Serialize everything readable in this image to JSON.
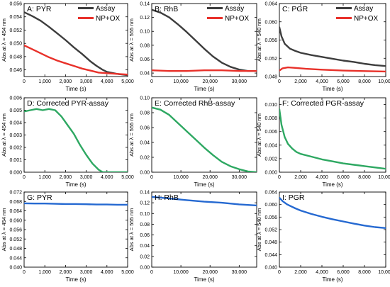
{
  "chart_data": [
    {
      "panel": "A",
      "type": "line",
      "title": "A: PYR",
      "xlabel": "Time (s)",
      "ylabel": "Abs at λ = 454 nm",
      "xlim": [
        0,
        5000
      ],
      "ylim": [
        0.045,
        0.056
      ],
      "xticks": [
        0,
        1000,
        2000,
        3000,
        4000,
        5000
      ],
      "xtick_labels": [
        "0",
        "1,000",
        "2,000",
        "3,000",
        "4,000",
        "5,000"
      ],
      "yticks": [
        0.046,
        0.048,
        0.05,
        0.052,
        0.054,
        0.056
      ],
      "ytick_labels": [
        "0.046",
        "0.048",
        "0.050",
        "0.052",
        "0.054",
        "0.056"
      ],
      "legend": "top-right",
      "series": [
        {
          "name": "Assay",
          "color": "#3d3d3d",
          "x": [
            0,
            400,
            800,
            1200,
            1600,
            2000,
            2400,
            2800,
            3200,
            3500,
            3800,
            4000,
            4500,
            5000
          ],
          "y": [
            0.0547,
            0.0541,
            0.0534,
            0.0525,
            0.0515,
            0.0505,
            0.0494,
            0.0484,
            0.0473,
            0.0466,
            0.046,
            0.0457,
            0.0454,
            0.0452
          ]
        },
        {
          "name": "NP+OX",
          "color": "#e8312a",
          "x": [
            0,
            400,
            800,
            1200,
            1600,
            2000,
            2400,
            2800,
            3200,
            3600,
            4000,
            4500,
            5000
          ],
          "y": [
            0.0497,
            0.0491,
            0.0485,
            0.0479,
            0.0474,
            0.047,
            0.0466,
            0.0462,
            0.0459,
            0.0456,
            0.0455,
            0.0454,
            0.0453
          ]
        }
      ]
    },
    {
      "panel": "B",
      "type": "line",
      "title": "B: RhB",
      "xlabel": "Time (s)",
      "ylabel": "Abs at λ = 555 nm",
      "xlim": [
        0,
        36000
      ],
      "ylim": [
        0.035,
        0.14
      ],
      "xticks": [
        0,
        10000,
        20000,
        30000
      ],
      "xtick_labels": [
        "0",
        "10,000",
        "20,000",
        "30,000"
      ],
      "yticks": [
        0.04,
        0.06,
        0.08,
        0.1,
        0.12,
        0.14
      ],
      "ytick_labels": [
        "0.04",
        "0.06",
        "0.08",
        "0.10",
        "0.12",
        "0.14"
      ],
      "legend": "top-right",
      "series": [
        {
          "name": "Assay",
          "color": "#3d3d3d",
          "x": [
            0,
            3000,
            6000,
            9000,
            12000,
            15000,
            18000,
            21000,
            24000,
            27000,
            30000,
            33000,
            36000
          ],
          "y": [
            0.131,
            0.127,
            0.12,
            0.11,
            0.099,
            0.087,
            0.075,
            0.064,
            0.055,
            0.049,
            0.045,
            0.043,
            0.043
          ]
        },
        {
          "name": "NP+OX",
          "color": "#e8312a",
          "x": [
            0,
            6000,
            12000,
            18000,
            24000,
            30000,
            36000
          ],
          "y": [
            0.044,
            0.043,
            0.043,
            0.044,
            0.044,
            0.043,
            0.043
          ]
        }
      ]
    },
    {
      "panel": "C",
      "type": "line",
      "title": "C: PGR",
      "xlabel": "Time (s)",
      "ylabel": "Abs at λ = 540 nm",
      "xlim": [
        0,
        10000
      ],
      "ylim": [
        0.048,
        0.064
      ],
      "xticks": [
        0,
        2000,
        4000,
        6000,
        8000,
        10000
      ],
      "xtick_labels": [
        "0",
        "2,000",
        "4,000",
        "6,000",
        "8,000",
        "10,000"
      ],
      "yticks": [
        0.048,
        0.052,
        0.056,
        0.06,
        0.064
      ],
      "ytick_labels": [
        "0.048",
        "0.052",
        "0.056",
        "0.060",
        "0.064"
      ],
      "legend": "top-right",
      "series": [
        {
          "name": "Assay",
          "color": "#3d3d3d",
          "x": [
            0,
            200,
            500,
            1000,
            1500,
            2000,
            3000,
            4000,
            5000,
            6000,
            7000,
            8000,
            9000,
            10000
          ],
          "y": [
            0.0588,
            0.0568,
            0.0552,
            0.0541,
            0.0536,
            0.0532,
            0.0527,
            0.0523,
            0.0519,
            0.0515,
            0.0512,
            0.0508,
            0.0505,
            0.0503
          ]
        },
        {
          "name": "NP+OX",
          "color": "#e8312a",
          "x": [
            0,
            300,
            800,
            1500,
            2500,
            4000,
            6000,
            8000,
            10000
          ],
          "y": [
            0.0493,
            0.0498,
            0.05,
            0.0499,
            0.0497,
            0.0495,
            0.0493,
            0.0492,
            0.0491
          ]
        }
      ]
    },
    {
      "panel": "D",
      "type": "line",
      "title": "D: Corrected PYR-assay",
      "xlabel": "Time (s)",
      "ylabel": "Abs at λ = 454 nm",
      "xlim": [
        0,
        5000
      ],
      "ylim": [
        0,
        0.006
      ],
      "xticks": [
        0,
        1000,
        2000,
        3000,
        4000,
        5000
      ],
      "xtick_labels": [
        "0",
        "1,000",
        "2,000",
        "3,000",
        "4,000",
        "5,000"
      ],
      "yticks": [
        0,
        0.001,
        0.002,
        0.003,
        0.004,
        0.005,
        0.006
      ],
      "ytick_labels": [
        "0.000",
        "0.001",
        "0.002",
        "0.003",
        "0.004",
        "0.005",
        "0.006"
      ],
      "series": [
        {
          "color": "#2ea862",
          "x": [
            0,
            300,
            600,
            900,
            1200,
            1500,
            1800,
            2100,
            2400,
            2700,
            3000,
            3300,
            3600,
            3800,
            4000,
            4500,
            5000
          ],
          "y": [
            0.0049,
            0.005,
            0.0051,
            0.005,
            0.0051,
            0.005,
            0.0045,
            0.0038,
            0.0031,
            0.0022,
            0.0014,
            0.0007,
            0.0002,
            0.0,
            0.0,
            0.0,
            0.0
          ]
        }
      ]
    },
    {
      "panel": "E",
      "type": "line",
      "title": "E: Corrected RhB-assay",
      "xlabel": "Time (s)",
      "ylabel": "Abs at λ = 555 nm",
      "xlim": [
        0,
        36000
      ],
      "ylim": [
        0,
        0.1
      ],
      "xticks": [
        0,
        10000,
        20000,
        30000
      ],
      "xtick_labels": [
        "0",
        "10,000",
        "20,000",
        "30,000"
      ],
      "yticks": [
        0,
        0.02,
        0.04,
        0.06,
        0.08,
        0.1
      ],
      "ytick_labels": [
        "0.00",
        "0.02",
        "0.04",
        "0.06",
        "0.08",
        "0.10"
      ],
      "series": [
        {
          "color": "#2ea862",
          "x": [
            0,
            3000,
            6000,
            9000,
            12000,
            15000,
            18000,
            21000,
            24000,
            27000,
            30000,
            33000,
            36000
          ],
          "y": [
            0.087,
            0.084,
            0.077,
            0.066,
            0.055,
            0.044,
            0.033,
            0.023,
            0.014,
            0.008,
            0.004,
            0.001,
            0.0
          ]
        }
      ]
    },
    {
      "panel": "F",
      "type": "line",
      "title": "F: Corrected PGR-assay",
      "xlabel": "Time (s)",
      "ylabel": "Abs at λ = 540 nm",
      "xlim": [
        0,
        10000
      ],
      "ylim": [
        0,
        0.011
      ],
      "xticks": [
        0,
        2000,
        4000,
        6000,
        8000,
        10000
      ],
      "xtick_labels": [
        "0",
        "2,000",
        "4,000",
        "6,000",
        "8,000",
        "10,000"
      ],
      "yticks": [
        0,
        0.002,
        0.004,
        0.006,
        0.008,
        0.01
      ],
      "ytick_labels": [
        "0.000",
        "0.002",
        "0.004",
        "0.006",
        "0.008",
        "0.010"
      ],
      "series": [
        {
          "color": "#2ea862",
          "x": [
            0,
            200,
            500,
            800,
            1200,
            1600,
            2000,
            3000,
            4000,
            5000,
            6000,
            7000,
            8000,
            9000,
            10000
          ],
          "y": [
            0.0093,
            0.007,
            0.0052,
            0.0042,
            0.0035,
            0.003,
            0.0027,
            0.0023,
            0.0019,
            0.0016,
            0.0013,
            0.0011,
            0.0009,
            0.0007,
            0.0005
          ]
        }
      ]
    },
    {
      "panel": "G",
      "type": "line",
      "title": "G: PYR",
      "xlabel": "Time (s)",
      "ylabel": "Abs at λ = 454 nm",
      "xlim": [
        0,
        5000
      ],
      "ylim": [
        0.04,
        0.072
      ],
      "xticks": [
        0,
        1000,
        2000,
        3000,
        4000,
        5000
      ],
      "xtick_labels": [
        "0",
        "1,000",
        "2,000",
        "3,000",
        "4,000",
        "5,000"
      ],
      "yticks": [
        0.04,
        0.044,
        0.048,
        0.052,
        0.056,
        0.06,
        0.064,
        0.068,
        0.072
      ],
      "ytick_labels": [
        "0.040",
        "0.044",
        "0.048",
        "0.052",
        "0.056",
        "0.060",
        "0.064",
        "0.068",
        "0.072"
      ],
      "series": [
        {
          "color": "#2569d1",
          "x": [
            0,
            500,
            1000,
            1500,
            2000,
            2500,
            3000,
            3500,
            4000,
            4500,
            5000
          ],
          "y": [
            0.0672,
            0.0671,
            0.0671,
            0.067,
            0.0669,
            0.0669,
            0.0668,
            0.0667,
            0.0667,
            0.0666,
            0.0666
          ]
        }
      ]
    },
    {
      "panel": "H",
      "type": "line",
      "title": "H: RhB",
      "xlabel": "Time (s)",
      "ylabel": "Abs at λ = 555 nm",
      "xlim": [
        0,
        36000
      ],
      "ylim": [
        0,
        0.14
      ],
      "xticks": [
        0,
        10000,
        20000,
        30000
      ],
      "xtick_labels": [
        "0",
        "10,000",
        "20,000",
        "30,000"
      ],
      "yticks": [
        0,
        0.02,
        0.04,
        0.06,
        0.08,
        0.1,
        0.12,
        0.14
      ],
      "ytick_labels": [
        "0.00",
        "0.02",
        "0.04",
        "0.06",
        "0.08",
        "0.10",
        "0.12",
        "0.14"
      ],
      "series": [
        {
          "color": "#2569d1",
          "x": [
            0,
            6000,
            12000,
            18000,
            24000,
            30000,
            36000
          ],
          "y": [
            0.131,
            0.128,
            0.125,
            0.122,
            0.12,
            0.117,
            0.115
          ]
        }
      ]
    },
    {
      "panel": "I",
      "type": "line",
      "title": "I: PGR",
      "xlabel": "Time (s)",
      "ylabel": "Abs at λ = 540 nm",
      "xlim": [
        0,
        10000
      ],
      "ylim": [
        0.04,
        0.064
      ],
      "xticks": [
        0,
        2000,
        4000,
        6000,
        8000,
        10000
      ],
      "xtick_labels": [
        "0",
        "2,000",
        "4,000",
        "6,000",
        "8,000",
        "10,000"
      ],
      "yticks": [
        0.04,
        0.044,
        0.048,
        0.052,
        0.056,
        0.06,
        0.064
      ],
      "ytick_labels": [
        "0.040",
        "0.044",
        "0.048",
        "0.052",
        "0.056",
        "0.060",
        "0.064"
      ],
      "series": [
        {
          "color": "#2569d1",
          "x": [
            0,
            300,
            700,
            1000,
            1500,
            2000,
            3000,
            4000,
            5000,
            6000,
            7000,
            8000,
            9000,
            10000
          ],
          "y": [
            0.0622,
            0.0611,
            0.0601,
            0.0596,
            0.0588,
            0.0581,
            0.057,
            0.0561,
            0.0553,
            0.0546,
            0.0539,
            0.0533,
            0.0528,
            0.0525
          ]
        }
      ]
    }
  ]
}
